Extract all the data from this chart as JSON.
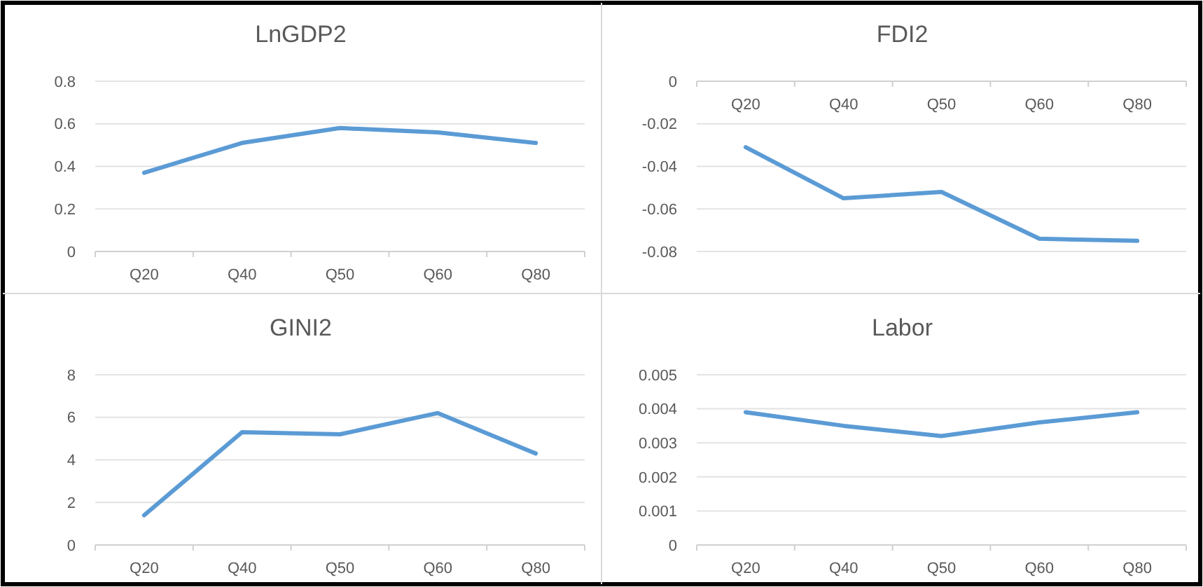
{
  "chart_data": [
    {
      "type": "line",
      "title": "LnGDP2",
      "categories": [
        "Q20",
        "Q40",
        "Q50",
        "Q60",
        "Q80"
      ],
      "series": [
        {
          "color": "#5b9bd5",
          "values": [
            0.37,
            0.51,
            0.58,
            0.56,
            0.51
          ]
        }
      ],
      "ylim": [
        0,
        0.8
      ],
      "yticks": [
        0,
        0.2,
        0.4,
        0.6,
        0.8
      ],
      "grid": "y"
    },
    {
      "type": "line",
      "title": "FDI2",
      "categories": [
        "Q20",
        "Q40",
        "Q50",
        "Q60",
        "Q80"
      ],
      "series": [
        {
          "color": "#5b9bd5",
          "values": [
            -0.031,
            -0.055,
            -0.052,
            -0.074,
            -0.075
          ]
        }
      ],
      "ylim": [
        -0.08,
        0
      ],
      "yticks": [
        -0.08,
        -0.06,
        -0.04,
        -0.02,
        0
      ],
      "grid": "y"
    },
    {
      "type": "line",
      "title": "GINI2",
      "categories": [
        "Q20",
        "Q40",
        "Q50",
        "Q60",
        "Q80"
      ],
      "series": [
        {
          "color": "#5b9bd5",
          "values": [
            1.4,
            5.3,
            5.2,
            6.2,
            4.3
          ]
        }
      ],
      "ylim": [
        0,
        8
      ],
      "yticks": [
        0,
        2,
        4,
        6,
        8
      ],
      "grid": "y"
    },
    {
      "type": "line",
      "title": "Labor",
      "categories": [
        "Q20",
        "Q40",
        "Q50",
        "Q60",
        "Q80"
      ],
      "series": [
        {
          "color": "#5b9bd5",
          "values": [
            0.0039,
            0.0035,
            0.0032,
            0.0036,
            0.0039
          ]
        }
      ],
      "ylim": [
        0,
        0.005
      ],
      "yticks": [
        0,
        0.001,
        0.002,
        0.003,
        0.004,
        0.005
      ],
      "grid": "y"
    }
  ]
}
